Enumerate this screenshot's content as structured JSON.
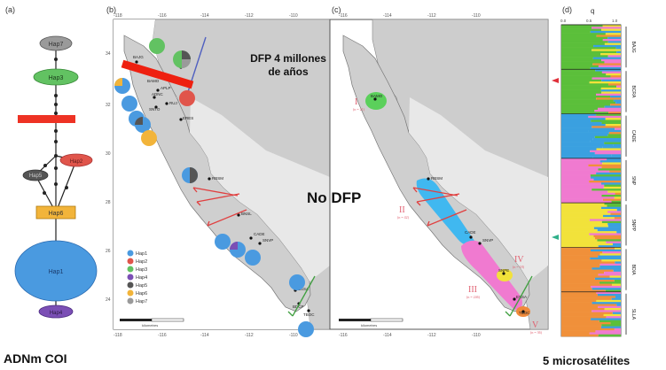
{
  "panels": {
    "a": "(a)",
    "b": "(b)",
    "c": "(c)",
    "d": "(d)"
  },
  "haplotype_network": {
    "nodes": [
      {
        "id": "hap7_top",
        "label": "Hap7",
        "color": "#9a9a9a"
      },
      {
        "id": "hap3",
        "label": "Hap3",
        "color": "#62c262"
      },
      {
        "id": "hap5",
        "label": "Hap5",
        "color": "#555555"
      },
      {
        "id": "hap2",
        "label": "Hap2",
        "color": "#e0554b"
      },
      {
        "id": "hap6",
        "label": "Hap6",
        "color": "#f2b43a"
      },
      {
        "id": "hap1",
        "label": "Hap1",
        "color": "#4a9ae0"
      },
      {
        "id": "hap4",
        "label": "Hap4",
        "color": "#7b4fb5"
      }
    ]
  },
  "map_b": {
    "top_ticks": [
      "-118",
      "-116",
      "-114",
      "-112",
      "-110"
    ],
    "bottom_ticks": [
      "-118",
      "-116",
      "-114",
      "-112",
      "-110"
    ],
    "left_ticks": [
      "34",
      "32",
      "30",
      "28",
      "26",
      "24"
    ],
    "site_labels": [
      "BAJG",
      "BAMO",
      "SNPE",
      "APLP",
      "ADNC",
      "RUJ",
      "SNTO",
      "ERES",
      "RBSM",
      "BNSL",
      "CADE",
      "SNVP",
      "ESSA",
      "BDCP",
      "TBOC"
    ],
    "legend": [
      "Hap1",
      "Hap2",
      "Hap3",
      "Hap4",
      "Hap5",
      "Hap6",
      "Hap7"
    ],
    "scale_text": "kilometres"
  },
  "map_c": {
    "top_ticks": [
      "-116",
      "-114",
      "-112",
      "-110"
    ],
    "bottom_ticks": [
      "-116",
      "-114",
      "-112",
      "-110"
    ],
    "site_labels": [
      "BAMO",
      "RBSM",
      "CADE",
      "SNVP",
      "SNPE",
      "ESSA",
      "TBOC"
    ],
    "groups": [
      {
        "label": "I",
        "n": "(n = 21)",
        "color": "#5bd05b"
      },
      {
        "label": "II",
        "n": "(n = 42)",
        "color": "#40b8f0"
      },
      {
        "label": "III",
        "n": "(n = 246)",
        "color": "#f07ad0"
      },
      {
        "label": "IV",
        "n": "(n = 18)",
        "color": "#f2e23a"
      },
      {
        "label": "V",
        "n": "(n = 36)",
        "color": "#f08a3a"
      }
    ]
  },
  "structure_plot": {
    "axis_title": "q",
    "axis_ticks": [
      "0.0",
      "0.5",
      "1.0"
    ],
    "groups": [
      {
        "name": "BAJG",
        "main": "#5bbf3a"
      },
      {
        "name": "BCRA",
        "main": "#5bbf3a"
      },
      {
        "name": "CADE",
        "main": "#3aa0e0"
      },
      {
        "name": "SNP",
        "main": "#f07ad0"
      },
      {
        "name": "SNPP",
        "main": "#f2e23a"
      },
      {
        "name": "BDIA",
        "main": "#f0903a"
      },
      {
        "name": "SLLA",
        "main": "#f0903a"
      }
    ]
  },
  "annotations": {
    "dfp_4ma_line1": "DFP 4 millones",
    "dfp_4ma_line2": "de años",
    "no_dfp": "No DFP",
    "left_caption": "ADNm COI",
    "right_caption": "5 microsatélites"
  }
}
